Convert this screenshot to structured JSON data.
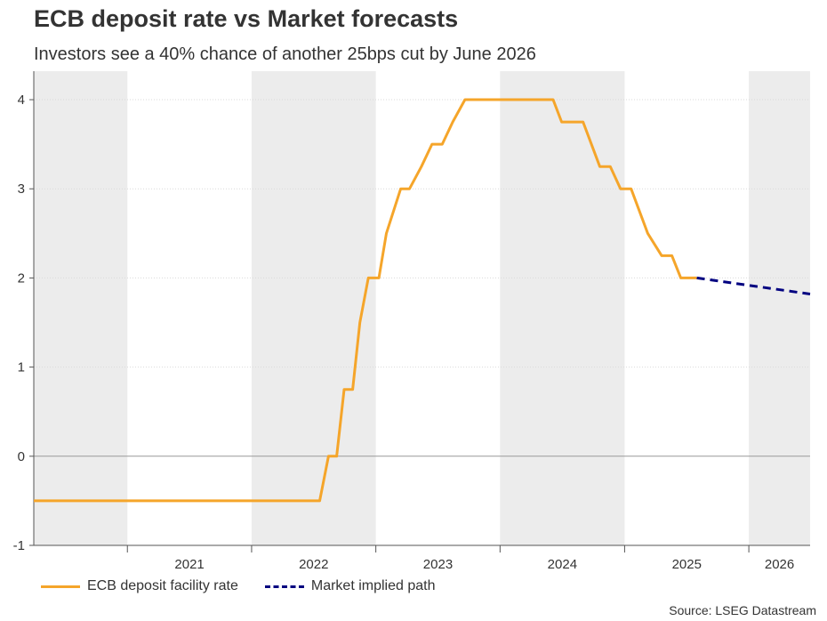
{
  "header": {
    "title": "ECB deposit rate vs Market forecasts",
    "subtitle": "Investors see a 40% chance of another 25bps cut by June 2026"
  },
  "source": "Source: LSEG Datastream",
  "colors": {
    "ecb": "#F5A52A",
    "market": "#000080",
    "shade": "#ececec",
    "axis": "#555555",
    "grid": "#d9d9d9"
  },
  "chart_data": {
    "type": "line",
    "title": "ECB deposit rate vs Market forecasts",
    "subtitle": "Investors see a 40% chance of another 25bps cut by June 2026",
    "xlim": [
      "2020-04-01",
      "2026-06-30"
    ],
    "ylim": [
      -1,
      4.2
    ],
    "yticks": [
      -1,
      0,
      1,
      2,
      3,
      4
    ],
    "year_labels": [
      "2021",
      "2022",
      "2023",
      "2024",
      "2025",
      "2026"
    ],
    "shaded_years": [
      "2020",
      "2022",
      "2024",
      "2026"
    ],
    "grid": "horizontal dotted",
    "legend_position": "bottom-left",
    "series": [
      {
        "name": "ECB deposit facility rate",
        "style": "solid",
        "points": [
          [
            "2020-04-01",
            -0.5
          ],
          [
            "2022-07-20",
            -0.5
          ],
          [
            "2022-08-15",
            0
          ],
          [
            "2022-09-08",
            0
          ],
          [
            "2022-09-30",
            0.75
          ],
          [
            "2022-10-25",
            0.75
          ],
          [
            "2022-11-15",
            1.5
          ],
          [
            "2022-12-10",
            2
          ],
          [
            "2023-01-10",
            2
          ],
          [
            "2023-02-01",
            2.5
          ],
          [
            "2023-03-15",
            3
          ],
          [
            "2023-04-10",
            3
          ],
          [
            "2023-05-15",
            3.25
          ],
          [
            "2023-06-15",
            3.5
          ],
          [
            "2023-07-15",
            3.5
          ],
          [
            "2023-08-15",
            3.75
          ],
          [
            "2023-09-20",
            4
          ],
          [
            "2024-06-05",
            4
          ],
          [
            "2024-06-30",
            3.75
          ],
          [
            "2024-09-01",
            3.75
          ],
          [
            "2024-10-20",
            3.25
          ],
          [
            "2024-11-20",
            3.25
          ],
          [
            "2024-12-20",
            3
          ],
          [
            "2025-01-20",
            3
          ],
          [
            "2025-03-10",
            2.5
          ],
          [
            "2025-04-20",
            2.25
          ],
          [
            "2025-05-20",
            2.25
          ],
          [
            "2025-06-15",
            2
          ],
          [
            "2025-08-01",
            2
          ]
        ]
      },
      {
        "name": "Market implied path",
        "style": "dashed",
        "points": [
          [
            "2025-08-01",
            2
          ],
          [
            "2026-06-30",
            1.82
          ]
        ]
      }
    ]
  }
}
